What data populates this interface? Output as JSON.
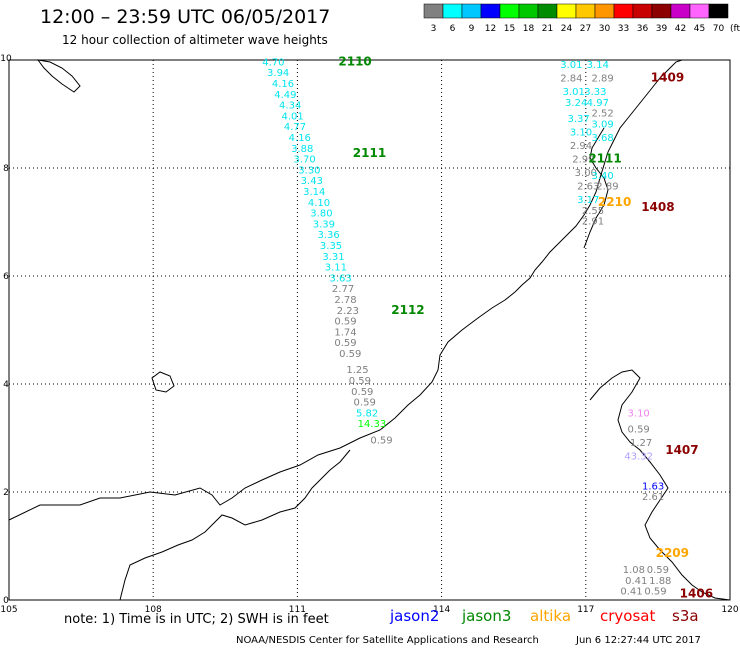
{
  "header": {
    "title": "12:00 – 23:59 UTC 06/05/2017",
    "subtitle": "12 hour collection of altimeter wave heights"
  },
  "color_scale": {
    "unit": "(ft)",
    "bins": [
      {
        "label": "3",
        "color": "#808080"
      },
      {
        "label": "6",
        "color": "#00ffff"
      },
      {
        "label": "9",
        "color": "#00c8ff"
      },
      {
        "label": "12",
        "color": "#0000ff"
      },
      {
        "label": "15",
        "color": "#00ff00"
      },
      {
        "label": "18",
        "color": "#00c800"
      },
      {
        "label": "21",
        "color": "#008c00"
      },
      {
        "label": "24",
        "color": "#ffff00"
      },
      {
        "label": "27",
        "color": "#ffc800"
      },
      {
        "label": "30",
        "color": "#ff9600"
      },
      {
        "label": "33",
        "color": "#ff0000"
      },
      {
        "label": "36",
        "color": "#c80000"
      },
      {
        "label": "39",
        "color": "#8c0000"
      },
      {
        "label": "42",
        "color": "#c800c8"
      },
      {
        "label": "45",
        "color": "#ff64ff"
      },
      {
        "label": "70",
        "color": "#000000"
      }
    ]
  },
  "axes": {
    "lon_ticks": [
      "105",
      "108",
      "111",
      "114",
      "117",
      "120"
    ],
    "lat_ticks": [
      "0",
      "2",
      "4",
      "6",
      "8",
      "10"
    ],
    "lon_range": [
      105,
      120
    ],
    "lat_range": [
      0,
      10
    ]
  },
  "tracks": [
    {
      "label": "2110",
      "lon": 112.2,
      "lat": 9.9
    },
    {
      "label": "2111",
      "lon": 112.5,
      "lat": 8.2
    },
    {
      "label": "2112",
      "lon": 113.3,
      "lat": 5.3
    },
    {
      "label": "1409",
      "lon": 118.7,
      "lat": 9.6
    },
    {
      "label": "2111",
      "lon": 117.4,
      "lat": 8.1
    },
    {
      "label": "2210",
      "lon": 117.6,
      "lat": 7.3
    },
    {
      "label": "1408",
      "lon": 118.5,
      "lat": 7.2
    },
    {
      "label": "1407",
      "lon": 119.0,
      "lat": 2.7
    },
    {
      "label": "2209",
      "lon": 118.8,
      "lat": 0.8
    },
    {
      "label": "1406",
      "lon": 119.3,
      "lat": 0.05
    }
  ],
  "wave_heights": [
    {
      "value": "4.70",
      "lon": 110.5,
      "lat": 9.9,
      "color": "#00e5ee"
    },
    {
      "value": "3.94",
      "lon": 110.6,
      "lat": 9.7,
      "color": "#00e5ee"
    },
    {
      "value": "4.16",
      "lon": 110.7,
      "lat": 9.5,
      "color": "#00e5ee"
    },
    {
      "value": "4.49",
      "lon": 110.75,
      "lat": 9.3,
      "color": "#00e5ee"
    },
    {
      "value": "4.34",
      "lon": 110.85,
      "lat": 9.1,
      "color": "#00e5ee"
    },
    {
      "value": "4.01",
      "lon": 110.9,
      "lat": 8.9,
      "color": "#00e5ee"
    },
    {
      "value": "4.77",
      "lon": 110.95,
      "lat": 8.7,
      "color": "#00e5ee"
    },
    {
      "value": "4.16",
      "lon": 111.05,
      "lat": 8.5,
      "color": "#00e5ee"
    },
    {
      "value": "3.88",
      "lon": 111.1,
      "lat": 8.3,
      "color": "#00e5ee"
    },
    {
      "value": "3.70",
      "lon": 111.15,
      "lat": 8.1,
      "color": "#00e5ee"
    },
    {
      "value": "3.30",
      "lon": 111.25,
      "lat": 7.9,
      "color": "#00e5ee"
    },
    {
      "value": "3.43",
      "lon": 111.3,
      "lat": 7.7,
      "color": "#00e5ee"
    },
    {
      "value": "3.14",
      "lon": 111.35,
      "lat": 7.5,
      "color": "#00e5ee"
    },
    {
      "value": "4.10",
      "lon": 111.45,
      "lat": 7.3,
      "color": "#00e5ee"
    },
    {
      "value": "3.80",
      "lon": 111.5,
      "lat": 7.1,
      "color": "#00e5ee"
    },
    {
      "value": "3.39",
      "lon": 111.55,
      "lat": 6.9,
      "color": "#00e5ee"
    },
    {
      "value": "3.36",
      "lon": 111.65,
      "lat": 6.7,
      "color": "#00e5ee"
    },
    {
      "value": "3.35",
      "lon": 111.7,
      "lat": 6.5,
      "color": "#00e5ee"
    },
    {
      "value": "3.31",
      "lon": 111.75,
      "lat": 6.3,
      "color": "#00e5ee"
    },
    {
      "value": "3.11",
      "lon": 111.8,
      "lat": 6.1,
      "color": "#00e5ee"
    },
    {
      "value": "3.63",
      "lon": 111.9,
      "lat": 5.9,
      "color": "#00e5ee"
    },
    {
      "value": "2.77",
      "lon": 111.95,
      "lat": 5.7,
      "color": "#808080"
    },
    {
      "value": "2.78",
      "lon": 112.0,
      "lat": 5.5,
      "color": "#808080"
    },
    {
      "value": "2.23",
      "lon": 112.05,
      "lat": 5.3,
      "color": "#808080"
    },
    {
      "value": "0.59",
      "lon": 112.0,
      "lat": 5.1,
      "color": "#808080"
    },
    {
      "value": "1.74",
      "lon": 112.0,
      "lat": 4.9,
      "color": "#808080"
    },
    {
      "value": "0.59",
      "lon": 112.0,
      "lat": 4.7,
      "color": "#808080"
    },
    {
      "value": "0.59",
      "lon": 112.1,
      "lat": 4.5,
      "color": "#808080"
    },
    {
      "value": "1.25",
      "lon": 112.25,
      "lat": 4.2,
      "color": "#808080"
    },
    {
      "value": "0.59",
      "lon": 112.3,
      "lat": 4.0,
      "color": "#808080"
    },
    {
      "value": "0.59",
      "lon": 112.35,
      "lat": 3.8,
      "color": "#808080"
    },
    {
      "value": "0.59",
      "lon": 112.4,
      "lat": 3.6,
      "color": "#808080"
    },
    {
      "value": "5.82",
      "lon": 112.45,
      "lat": 3.4,
      "color": "#00e5ee"
    },
    {
      "value": "14.33",
      "lon": 112.55,
      "lat": 3.2,
      "color": "#00ff00"
    },
    {
      "value": "0.59",
      "lon": 112.75,
      "lat": 2.9,
      "color": "#808080"
    },
    {
      "value": "3.01",
      "lon": 116.7,
      "lat": 9.85,
      "color": "#00e5ee"
    },
    {
      "value": "3.14",
      "lon": 117.25,
      "lat": 9.85,
      "color": "#00e5ee"
    },
    {
      "value": "2.84",
      "lon": 116.7,
      "lat": 9.6,
      "color": "#808080"
    },
    {
      "value": "2.89",
      "lon": 117.35,
      "lat": 9.6,
      "color": "#808080"
    },
    {
      "value": "3.01",
      "lon": 116.75,
      "lat": 9.35,
      "color": "#00e5ee"
    },
    {
      "value": "3.33",
      "lon": 117.2,
      "lat": 9.35,
      "color": "#00e5ee"
    },
    {
      "value": "3.24",
      "lon": 116.8,
      "lat": 9.15,
      "color": "#00e5ee"
    },
    {
      "value": "4.97",
      "lon": 117.25,
      "lat": 9.15,
      "color": "#00e5ee"
    },
    {
      "value": "2.52",
      "lon": 117.35,
      "lat": 8.95,
      "color": "#808080"
    },
    {
      "value": "3.37",
      "lon": 116.85,
      "lat": 8.85,
      "color": "#00e5ee"
    },
    {
      "value": "3.09",
      "lon": 117.35,
      "lat": 8.75,
      "color": "#00e5ee"
    },
    {
      "value": "3.10",
      "lon": 116.9,
      "lat": 8.6,
      "color": "#00e5ee"
    },
    {
      "value": "3.68",
      "lon": 117.35,
      "lat": 8.5,
      "color": "#00e5ee"
    },
    {
      "value": "2.94",
      "lon": 116.9,
      "lat": 8.35,
      "color": "#808080"
    },
    {
      "value": "2.99",
      "lon": 116.95,
      "lat": 8.1,
      "color": "#808080"
    },
    {
      "value": "3.00",
      "lon": 117.0,
      "lat": 7.85,
      "color": "#808080"
    },
    {
      "value": "3.40",
      "lon": 117.35,
      "lat": 7.8,
      "color": "#00e5ee"
    },
    {
      "value": "2.89",
      "lon": 117.45,
      "lat": 7.6,
      "color": "#808080"
    },
    {
      "value": "2.63",
      "lon": 117.05,
      "lat": 7.6,
      "color": "#808080"
    },
    {
      "value": "3.17",
      "lon": 117.05,
      "lat": 7.35,
      "color": "#00e5ee"
    },
    {
      "value": "2.55",
      "lon": 117.15,
      "lat": 7.15,
      "color": "#808080"
    },
    {
      "value": "2.91",
      "lon": 117.15,
      "lat": 6.95,
      "color": "#808080"
    },
    {
      "value": "3.10",
      "lon": 118.1,
      "lat": 3.4,
      "color": "#ee82ee"
    },
    {
      "value": "0.59",
      "lon": 118.1,
      "lat": 3.1,
      "color": "#808080"
    },
    {
      "value": "1.27",
      "lon": 118.15,
      "lat": 2.85,
      "color": "#808080"
    },
    {
      "value": "43.32",
      "lon": 118.1,
      "lat": 2.6,
      "color": "#b0a0ff"
    },
    {
      "value": "1.63",
      "lon": 118.4,
      "lat": 2.05,
      "color": "#0000ff"
    },
    {
      "value": "2.61",
      "lon": 118.4,
      "lat": 1.85,
      "color": "#808080"
    },
    {
      "value": "1.08",
      "lon": 118.0,
      "lat": 0.5,
      "color": "#808080"
    },
    {
      "value": "0.59",
      "lon": 118.5,
      "lat": 0.5,
      "color": "#808080"
    },
    {
      "value": "0.41",
      "lon": 118.05,
      "lat": 0.3,
      "color": "#808080"
    },
    {
      "value": "1.88",
      "lon": 118.55,
      "lat": 0.3,
      "color": "#808080"
    },
    {
      "value": "0.41",
      "lon": 117.95,
      "lat": 0.1,
      "color": "#808080"
    },
    {
      "value": "0.59",
      "lon": 118.45,
      "lat": 0.1,
      "color": "#808080"
    }
  ],
  "footer": {
    "note": "note:  1) Time is in UTC;  2) SWH is in feet",
    "satellites": [
      {
        "name": "jason2",
        "color": "#0000ff"
      },
      {
        "name": "jason3",
        "color": "#008800"
      },
      {
        "name": "altika",
        "color": "#ffa500"
      },
      {
        "name": "cryosat",
        "color": "#ff0000"
      },
      {
        "name": "s3a",
        "color": "#8b0000"
      }
    ],
    "credit": "NOAA/NESDIS Center for Satellite Applications and Research",
    "timestamp": "Jun  6 12:27:44 UTC 2017"
  }
}
